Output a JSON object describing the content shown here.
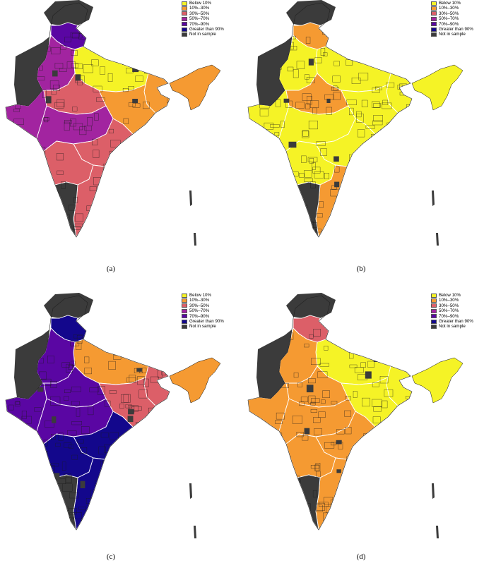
{
  "legend": {
    "items": [
      {
        "label": "Below 10%",
        "color": "#f5f326"
      },
      {
        "label": "10%–30%",
        "color": "#f59a32"
      },
      {
        "label": "30%–50%",
        "color": "#dc5f68"
      },
      {
        "label": "50%–70%",
        "color": "#a224a0"
      },
      {
        "label": "70%–90%",
        "color": "#5a06a3"
      },
      {
        "label": "Greater than 90%",
        "color": "#13078c"
      },
      {
        "label": "Not in sample",
        "color": "#3b3b3b"
      }
    ]
  },
  "panels": [
    {
      "caption": "(a)",
      "dominant_fill": "mixed-orange-purple"
    },
    {
      "caption": "(b)",
      "dominant_fill": "yellow"
    },
    {
      "caption": "(c)",
      "dominant_fill": "purple-blue"
    },
    {
      "caption": "(d)",
      "dominant_fill": "yellow-orange"
    }
  ],
  "colors": {
    "not_in_sample": "#3b3b3b",
    "district_border": "#1a1a1a",
    "state_border": "#ffffff"
  }
}
